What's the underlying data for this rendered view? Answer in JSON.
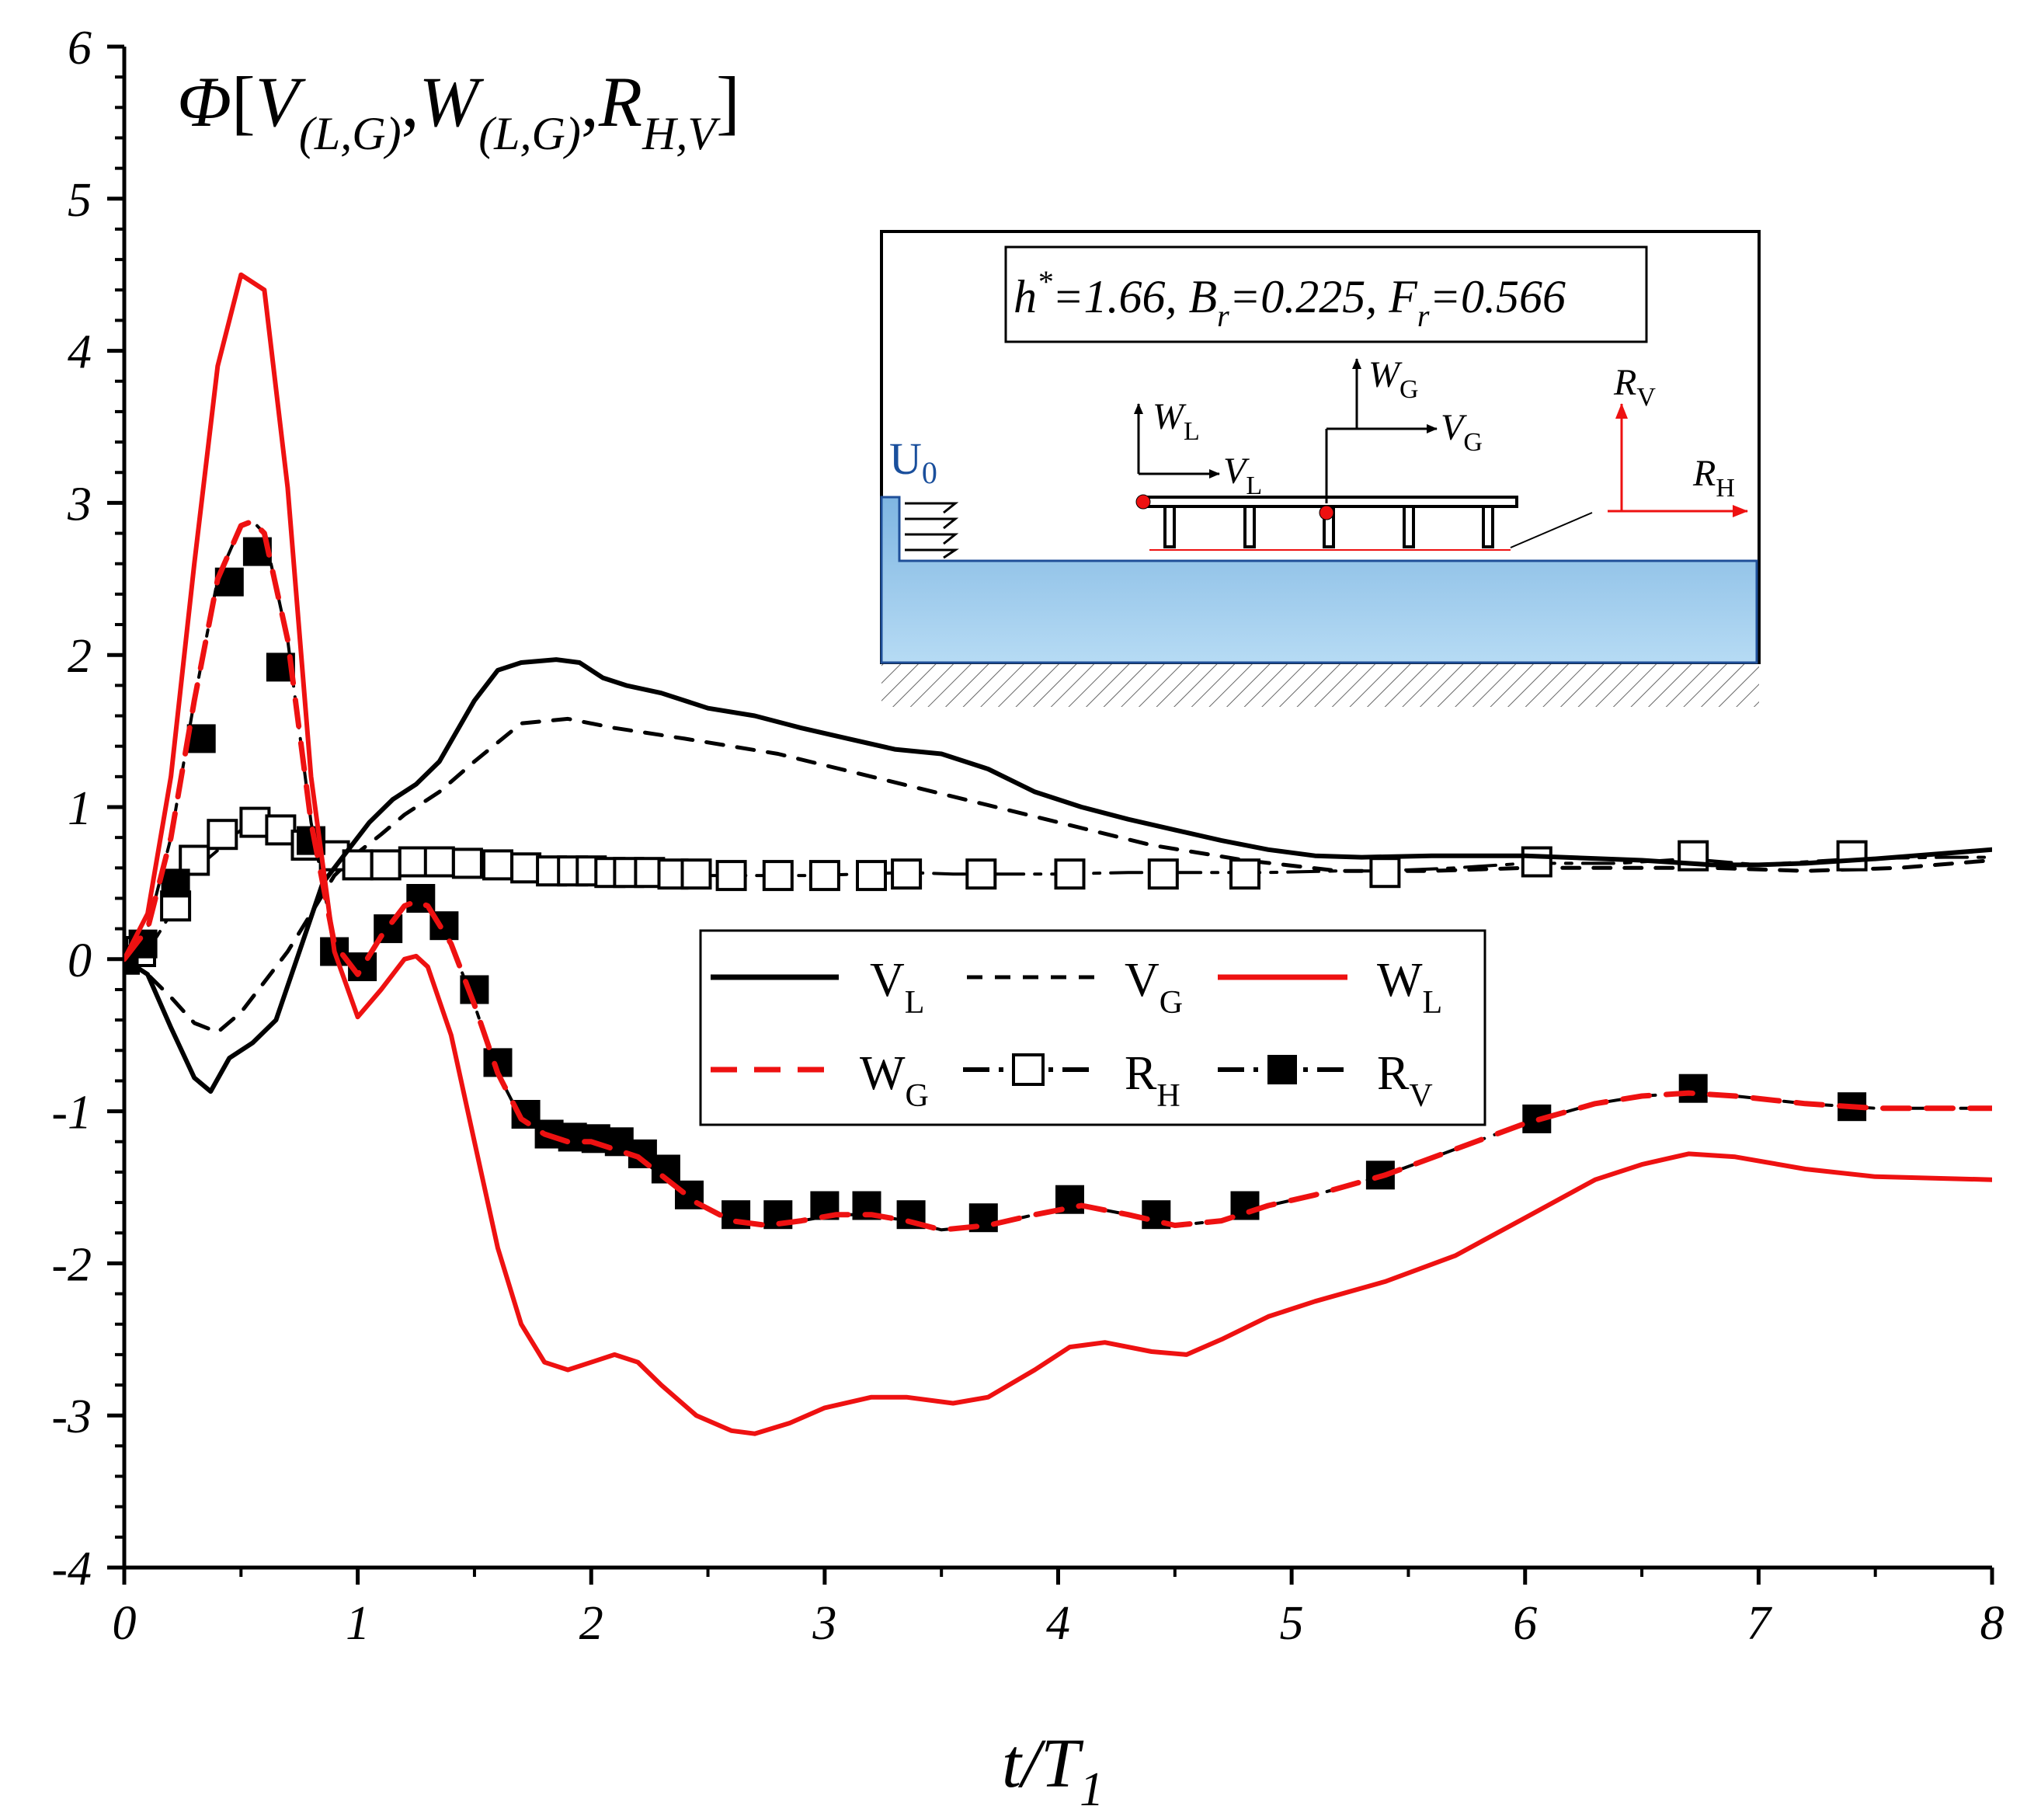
{
  "chart_data": {
    "type": "line",
    "title": "Φ[V(L,G),W(L,G),RH,V]",
    "title_parts": {
      "phi": "Φ",
      "V": "V",
      "W": "W",
      "R": "R",
      "sub_LG": "(L,G)",
      "sub_HV": "H,V",
      "comma": ",",
      "open": "[",
      "close": "]"
    },
    "xlabel": "t/T",
    "xlabel_sub": "1",
    "ylabel": "",
    "xlim": [
      0,
      8
    ],
    "ylim": [
      -4,
      6
    ],
    "x_ticks": [
      "0",
      "1",
      "2",
      "3",
      "4",
      "5",
      "6",
      "7",
      "8"
    ],
    "y_ticks": [
      "-4",
      "-3",
      "-2",
      "-1",
      "0",
      "1",
      "2",
      "3",
      "4",
      "5",
      "6"
    ],
    "legend_position": "center-right",
    "series": [
      {
        "name": "VL",
        "label": "V",
        "sub": "L",
        "color": "#000000",
        "style": "solid",
        "x": [
          0,
          0.1,
          0.2,
          0.3,
          0.37,
          0.45,
          0.55,
          0.65,
          0.75,
          0.85,
          0.95,
          1.05,
          1.15,
          1.25,
          1.35,
          1.5,
          1.6,
          1.7,
          1.85,
          1.95,
          2.05,
          2.15,
          2.3,
          2.5,
          2.7,
          2.9,
          3.1,
          3.3,
          3.5,
          3.7,
          3.9,
          4.1,
          4.3,
          4.5,
          4.7,
          4.9,
          5.1,
          5.3,
          5.6,
          6.0,
          6.5,
          6.8,
          7.0,
          7.2,
          7.5,
          8.0
        ],
        "y": [
          0,
          -0.1,
          -0.45,
          -0.78,
          -0.87,
          -0.65,
          -0.55,
          -0.4,
          0.05,
          0.5,
          0.7,
          0.9,
          1.05,
          1.15,
          1.3,
          1.7,
          1.9,
          1.95,
          1.97,
          1.95,
          1.85,
          1.8,
          1.75,
          1.65,
          1.6,
          1.52,
          1.45,
          1.38,
          1.35,
          1.25,
          1.1,
          1.0,
          0.92,
          0.85,
          0.78,
          0.72,
          0.68,
          0.67,
          0.68,
          0.68,
          0.65,
          0.62,
          0.62,
          0.63,
          0.66,
          0.72
        ]
      },
      {
        "name": "VG",
        "label": "V",
        "sub": "G",
        "color": "#000000",
        "style": "dashed",
        "x": [
          0,
          0.1,
          0.2,
          0.3,
          0.4,
          0.5,
          0.6,
          0.7,
          0.8,
          0.9,
          1.0,
          1.1,
          1.2,
          1.35,
          1.5,
          1.7,
          1.9,
          2.1,
          2.4,
          2.8,
          3.2,
          3.6,
          4.0,
          4.4,
          4.8,
          5.2,
          5.6,
          6.0,
          6.5,
          6.8,
          7.2,
          7.6,
          8.0
        ],
        "y": [
          0,
          -0.1,
          -0.25,
          -0.42,
          -0.48,
          -0.35,
          -0.15,
          0.05,
          0.3,
          0.55,
          0.7,
          0.82,
          0.95,
          1.1,
          1.3,
          1.55,
          1.58,
          1.52,
          1.45,
          1.35,
          1.2,
          1.05,
          0.9,
          0.75,
          0.65,
          0.58,
          0.58,
          0.6,
          0.6,
          0.6,
          0.58,
          0.6,
          0.65
        ]
      },
      {
        "name": "WL",
        "label": "W",
        "sub": "L",
        "color": "#ee1111",
        "style": "solid",
        "x": [
          0,
          0.1,
          0.2,
          0.3,
          0.4,
          0.5,
          0.6,
          0.7,
          0.8,
          0.9,
          1.0,
          1.1,
          1.2,
          1.25,
          1.3,
          1.4,
          1.5,
          1.6,
          1.7,
          1.8,
          1.9,
          2.0,
          2.1,
          2.2,
          2.3,
          2.45,
          2.6,
          2.7,
          2.85,
          3.0,
          3.2,
          3.35,
          3.55,
          3.7,
          3.9,
          4.05,
          4.2,
          4.4,
          4.55,
          4.7,
          4.9,
          5.1,
          5.4,
          5.7,
          6.0,
          6.3,
          6.5,
          6.7,
          6.9,
          7.2,
          7.5,
          8.0
        ],
        "y": [
          0,
          0.3,
          1.2,
          2.6,
          3.9,
          4.5,
          4.4,
          3.1,
          1.2,
          0.05,
          -0.38,
          -0.2,
          0.0,
          0.02,
          -0.05,
          -0.5,
          -1.2,
          -1.9,
          -2.4,
          -2.65,
          -2.7,
          -2.65,
          -2.6,
          -2.65,
          -2.8,
          -3.0,
          -3.1,
          -3.12,
          -3.05,
          -2.95,
          -2.88,
          -2.88,
          -2.92,
          -2.88,
          -2.7,
          -2.55,
          -2.52,
          -2.58,
          -2.6,
          -2.5,
          -2.35,
          -2.25,
          -2.12,
          -1.95,
          -1.7,
          -1.45,
          -1.35,
          -1.28,
          -1.3,
          -1.38,
          -1.43,
          -1.45
        ]
      },
      {
        "name": "WG",
        "label": "W",
        "sub": "G",
        "color": "#ee1111",
        "style": "dashed",
        "x": [
          0,
          0.1,
          0.2,
          0.3,
          0.4,
          0.5,
          0.55,
          0.6,
          0.7,
          0.8,
          0.9,
          1.0,
          1.1,
          1.2,
          1.25,
          1.3,
          1.4,
          1.5,
          1.6,
          1.7,
          1.8,
          1.9,
          2.0,
          2.1,
          2.2,
          2.3,
          2.45,
          2.6,
          2.75,
          2.9,
          3.05,
          3.2,
          3.35,
          3.5,
          3.7,
          3.9,
          4.1,
          4.3,
          4.5,
          4.7,
          4.9,
          5.1,
          5.4,
          5.7,
          6.0,
          6.3,
          6.5,
          6.7,
          6.9,
          7.2,
          7.5,
          8.0
        ],
        "y": [
          0,
          0.2,
          0.8,
          1.7,
          2.5,
          2.85,
          2.88,
          2.8,
          2.1,
          0.9,
          0.1,
          -0.1,
          0.15,
          0.35,
          0.38,
          0.35,
          0.1,
          -0.3,
          -0.75,
          -1.05,
          -1.15,
          -1.2,
          -1.2,
          -1.25,
          -1.3,
          -1.42,
          -1.6,
          -1.72,
          -1.75,
          -1.72,
          -1.68,
          -1.68,
          -1.72,
          -1.78,
          -1.75,
          -1.68,
          -1.62,
          -1.68,
          -1.75,
          -1.72,
          -1.62,
          -1.55,
          -1.42,
          -1.25,
          -1.08,
          -0.95,
          -0.9,
          -0.88,
          -0.9,
          -0.95,
          -0.98,
          -0.98
        ]
      },
      {
        "name": "RH",
        "label": "R",
        "sub": "H",
        "color": "#000000",
        "style": "dash-dot",
        "marker": "open-square",
        "x": [
          0,
          0.1,
          0.2,
          0.25,
          0.3,
          0.35,
          0.45,
          0.5,
          0.55,
          0.6,
          0.65,
          0.75,
          0.85,
          0.95,
          1.0,
          1.05,
          1.15,
          1.25,
          1.35,
          1.45,
          1.55,
          1.65,
          1.75,
          1.85,
          1.95,
          2.05,
          2.15,
          2.25,
          2.35,
          2.55,
          2.75,
          2.95,
          3.15,
          3.35,
          3.55,
          3.75,
          4.0,
          4.3,
          4.6,
          4.9,
          5.2,
          5.4,
          5.7,
          6.0,
          6.4,
          6.7,
          7.0,
          7.4,
          7.8,
          8.0
        ],
        "y": [
          0,
          0.05,
          0.3,
          0.45,
          0.6,
          0.65,
          0.78,
          0.85,
          0.88,
          0.88,
          0.85,
          0.78,
          0.7,
          0.65,
          0.6,
          0.58,
          0.6,
          0.62,
          0.63,
          0.62,
          0.6,
          0.58,
          0.57,
          0.56,
          0.56,
          0.56,
          0.56,
          0.56,
          0.55,
          0.55,
          0.55,
          0.55,
          0.56,
          0.57,
          0.56,
          0.56,
          0.56,
          0.57,
          0.57,
          0.57,
          0.58,
          0.58,
          0.6,
          0.63,
          0.63,
          0.66,
          0.62,
          0.66,
          0.67,
          0.67
        ],
        "marker_x": [
          0.0,
          0.07,
          0.22,
          0.3,
          0.42,
          0.56,
          0.67,
          0.78,
          0.9,
          1.0,
          1.12,
          1.24,
          1.35,
          1.47,
          1.6,
          1.72,
          1.83,
          1.92,
          2.0,
          2.08,
          2.16,
          2.25,
          2.35,
          2.45,
          2.6,
          2.8,
          3.0,
          3.2,
          3.35,
          3.67,
          4.05,
          4.45,
          4.8,
          5.4,
          6.05,
          6.72,
          7.4
        ],
        "marker_y": [
          0.0,
          0.05,
          0.35,
          0.65,
          0.82,
          0.9,
          0.85,
          0.75,
          0.68,
          0.62,
          0.62,
          0.64,
          0.64,
          0.63,
          0.62,
          0.6,
          0.58,
          0.58,
          0.58,
          0.57,
          0.57,
          0.57,
          0.56,
          0.56,
          0.55,
          0.55,
          0.55,
          0.55,
          0.56,
          0.56,
          0.56,
          0.56,
          0.56,
          0.57,
          0.64,
          0.68,
          0.68
        ]
      },
      {
        "name": "RV",
        "label": "R",
        "sub": "V",
        "color": "#000000",
        "style": "dash-dot",
        "marker": "filled-square",
        "x": [
          0,
          0.1,
          0.2,
          0.3,
          0.4,
          0.5,
          0.55,
          0.6,
          0.7,
          0.8,
          0.9,
          1.0,
          1.1,
          1.2,
          1.25,
          1.3,
          1.4,
          1.5,
          1.6,
          1.7,
          1.8,
          1.9,
          2.0,
          2.1,
          2.2,
          2.3,
          2.45,
          2.6,
          2.75,
          2.9,
          3.05,
          3.2,
          3.35,
          3.5,
          3.7,
          3.9,
          4.1,
          4.3,
          4.5,
          4.7,
          4.9,
          5.1,
          5.4,
          5.7,
          6.0,
          6.3,
          6.5,
          6.7,
          6.9,
          7.2,
          7.5,
          8.0
        ],
        "y": [
          0,
          0.2,
          0.8,
          1.7,
          2.5,
          2.85,
          2.88,
          2.8,
          2.1,
          0.9,
          0.1,
          -0.1,
          0.15,
          0.35,
          0.38,
          0.35,
          0.1,
          -0.3,
          -0.75,
          -1.05,
          -1.15,
          -1.2,
          -1.2,
          -1.25,
          -1.3,
          -1.42,
          -1.6,
          -1.72,
          -1.75,
          -1.72,
          -1.68,
          -1.68,
          -1.72,
          -1.78,
          -1.75,
          -1.68,
          -1.62,
          -1.68,
          -1.75,
          -1.72,
          -1.62,
          -1.55,
          -1.42,
          -1.25,
          -1.08,
          -0.95,
          -0.9,
          -0.88,
          -0.9,
          -0.95,
          -0.98,
          -0.98
        ],
        "marker_x": [
          0.0,
          0.08,
          0.22,
          0.33,
          0.45,
          0.57,
          0.67,
          0.8,
          0.9,
          1.02,
          1.13,
          1.27,
          1.37,
          1.5,
          1.6,
          1.72,
          1.82,
          1.92,
          2.02,
          2.12,
          2.22,
          2.32,
          2.42,
          2.62,
          2.8,
          3.0,
          3.18,
          3.37,
          3.68,
          4.05,
          4.42,
          4.8,
          5.38,
          6.05,
          6.72,
          7.4
        ],
        "marker_y": [
          0.0,
          0.1,
          0.5,
          1.45,
          2.48,
          2.68,
          1.92,
          0.78,
          0.05,
          -0.05,
          0.2,
          0.4,
          0.22,
          -0.2,
          -0.68,
          -1.02,
          -1.15,
          -1.17,
          -1.18,
          -1.2,
          -1.28,
          -1.38,
          -1.55,
          -1.68,
          -1.68,
          -1.62,
          -1.62,
          -1.68,
          -1.7,
          -1.58,
          -1.68,
          -1.62,
          -1.42,
          -1.05,
          -0.85,
          -0.97
        ]
      }
    ]
  },
  "inset": {
    "params_label": "h*=1.66, B_r=0.225, F_r=0.566",
    "params_parts": {
      "h": "h",
      "star": "*",
      "h_val": "=1.66, ",
      "B": "B",
      "r": "r",
      "B_val": "=0.225, ",
      "F": "F",
      "F_val": "=0.566"
    },
    "inflow_label": "U",
    "inflow_sub": "0",
    "WL": "W",
    "WL_sub": "L",
    "VL": "V",
    "VL_sub": "L",
    "WG": "W",
    "WG_sub": "G",
    "VG": "V",
    "VG_sub": "G",
    "RV": "R",
    "RV_sub": "V",
    "RH": "R",
    "RH_sub": "H",
    "water_color": "#9ccaec",
    "arrow_red": "#ee1111"
  }
}
